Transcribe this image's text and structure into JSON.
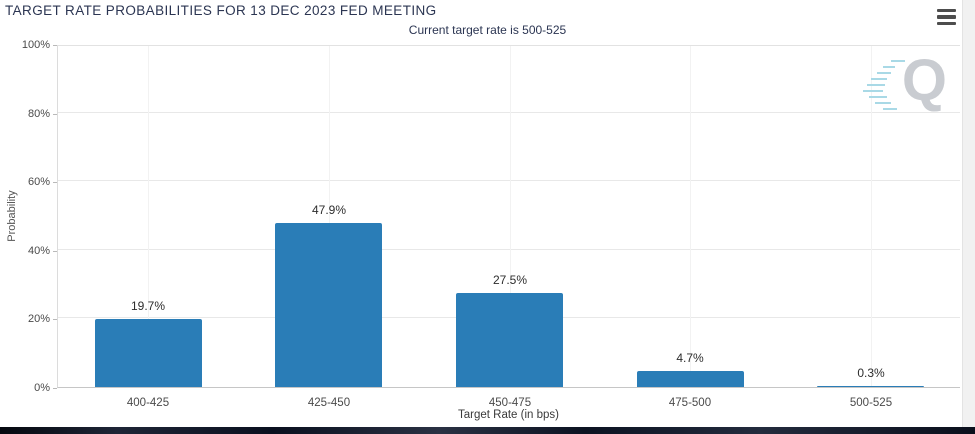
{
  "header": {
    "title": "TARGET RATE PROBABILITIES FOR 13 DEC 2023 FED MEETING",
    "subtitle": "Current target rate is 500-525"
  },
  "watermark": {
    "letter": "Q"
  },
  "colors": {
    "bar": "#2a7db7",
    "title_text": "#2b3552",
    "gridline": "#e8e8e8",
    "axis_line": "#c6c6c6"
  },
  "chart_data": {
    "type": "bar",
    "title": "TARGET RATE PROBABILITIES FOR 13 DEC 2023 FED MEETING",
    "subtitle": "Current target rate is 500-525",
    "categories": [
      "400-425",
      "425-450",
      "450-475",
      "475-500",
      "500-525"
    ],
    "values": [
      19.7,
      47.9,
      27.5,
      4.7,
      0.3
    ],
    "value_labels": [
      "19.7%",
      "47.9%",
      "27.5%",
      "4.7%",
      "0.3%"
    ],
    "xlabel": "Target Rate (in bps)",
    "ylabel": "Probability",
    "ylim": [
      0,
      100
    ],
    "ytick_values": [
      0,
      20,
      40,
      60,
      80,
      100
    ],
    "ytick_labels": [
      "0%",
      "20%",
      "40%",
      "60%",
      "80%",
      "100%"
    ],
    "grid": true,
    "legend": false
  }
}
